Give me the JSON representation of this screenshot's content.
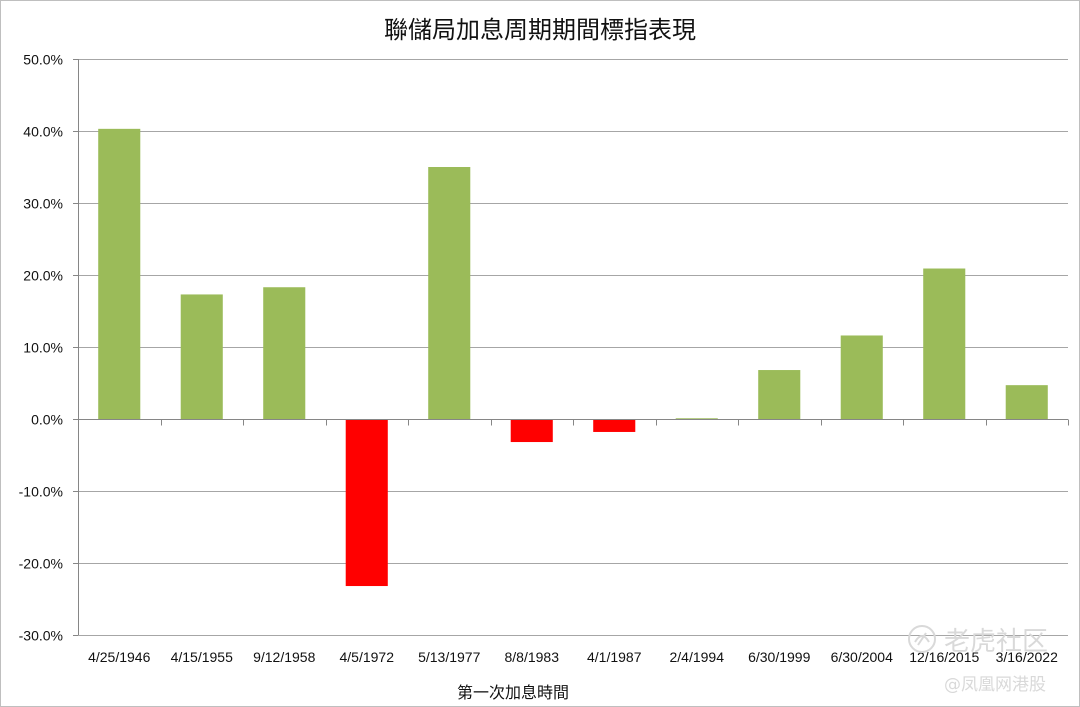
{
  "chart_data": {
    "type": "bar",
    "title": "聯儲局加息周期期間標指表現",
    "xlabel": "第一次加息時間",
    "ylabel": "",
    "categories": [
      "4/25/1946",
      "4/15/1955",
      "9/12/1958",
      "4/5/1972",
      "5/13/1977",
      "8/8/1983",
      "4/1/1987",
      "2/4/1994",
      "6/30/1999",
      "6/30/2004",
      "12/16/2015",
      "3/16/2022"
    ],
    "values": [
      40.3,
      17.3,
      18.3,
      -23.2,
      35.0,
      -3.2,
      -1.8,
      0.1,
      6.8,
      11.6,
      20.9,
      4.7
    ],
    "ylim": [
      -30,
      50
    ],
    "yticks": [
      50,
      40,
      30,
      20,
      10,
      0,
      -10,
      -20,
      -30
    ],
    "ytick_labels": [
      "50.0%",
      "40.0%",
      "30.0%",
      "20.0%",
      "10.0%",
      "0.0%",
      "-10.0%",
      "-20.0%",
      "-30.0%"
    ],
    "grid": true,
    "legend": "none",
    "positive_color": "#9bbb59",
    "negative_color": "#ff0000"
  },
  "watermarks": {
    "brand": "老虎社区",
    "source": "@凤凰网港股"
  }
}
